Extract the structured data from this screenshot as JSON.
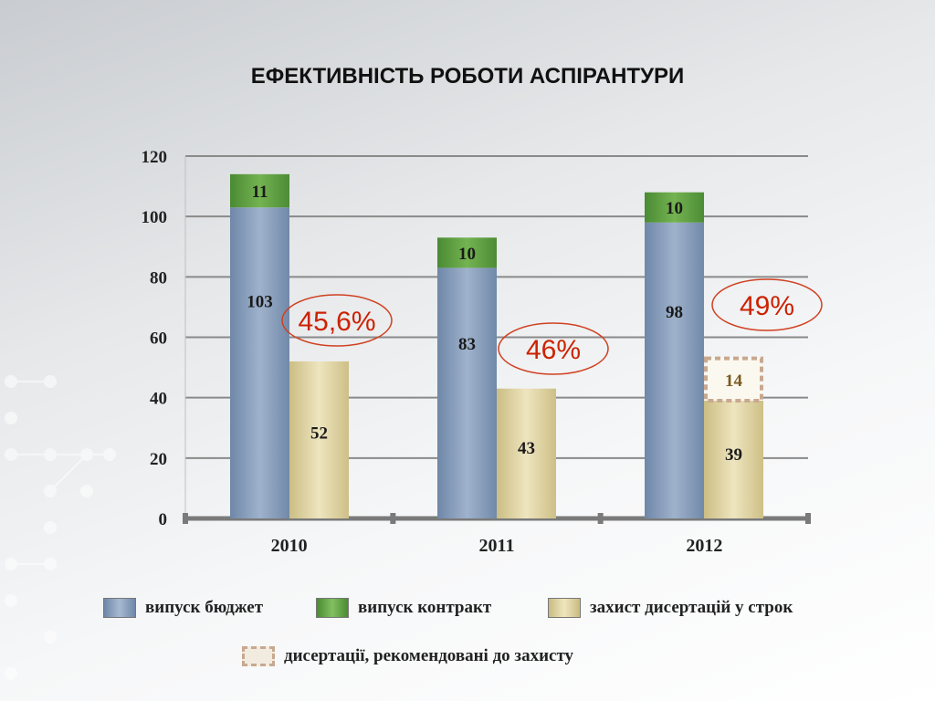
{
  "title": "ЕФЕКТИВНІСТЬ РОБОТИ  АСПІРАНТУРИ",
  "legend": {
    "budget": "випуск бюджет",
    "contract": "випуск контракт",
    "defense": "захист дисертацій у строк",
    "recommended": "дисертації, рекомендовані до захисту"
  },
  "colors": {
    "budget": "#8da3c0",
    "contract": "#6aa84f",
    "defense": "#dfd3a0",
    "recommended_border": "#c8a890",
    "percent": "#cc2200",
    "ellipse": "#d04020"
  },
  "chart_data": {
    "type": "bar",
    "categories": [
      "2010",
      "2011",
      "2012"
    ],
    "ylim": [
      0,
      120
    ],
    "yticks": [
      "0",
      "20",
      "40",
      "60",
      "80",
      "100",
      "120"
    ],
    "series": [
      {
        "name": "випуск бюджет",
        "values": [
          103,
          83,
          98
        ]
      },
      {
        "name": "випуск контракт",
        "values": [
          11,
          10,
          10
        ]
      },
      {
        "name": "захист дисертацій у строк",
        "values": [
          52,
          43,
          39
        ]
      },
      {
        "name": "дисертації, рекомендовані до захисту",
        "values": [
          null,
          null,
          14
        ]
      }
    ],
    "annotations": [
      "45,6%",
      "46%",
      "49%"
    ]
  }
}
